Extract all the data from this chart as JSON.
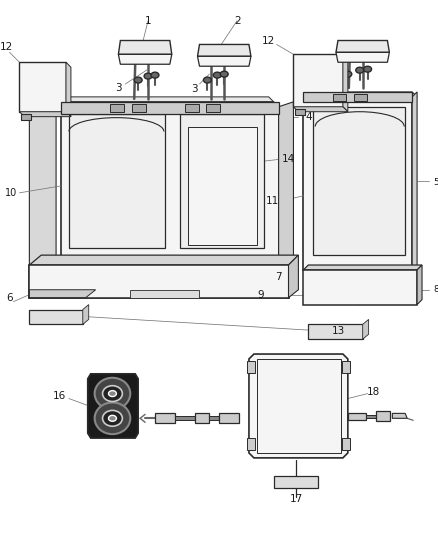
{
  "background_color": "#ffffff",
  "line_color": "#2a2a2a",
  "label_color": "#1a1a1a",
  "fig_width": 4.38,
  "fig_height": 5.33,
  "dpi": 100
}
